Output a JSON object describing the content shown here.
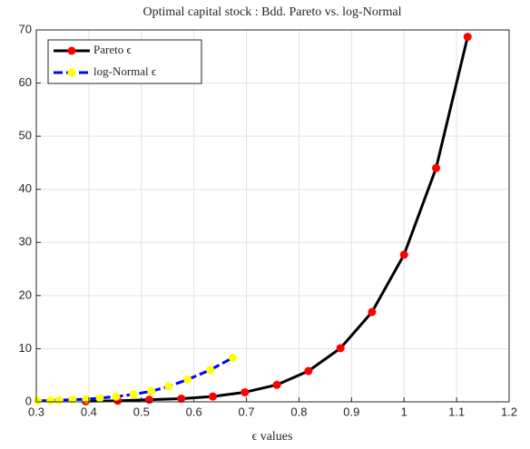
{
  "chart_data": {
    "type": "line",
    "title": "Optimal capital stock : Bdd. Pareto vs. log-Normal",
    "xlabel": "ϵ values",
    "xlim": [
      0.3,
      1.2
    ],
    "xticks": [
      0.3,
      0.4,
      0.5,
      0.6,
      0.7,
      0.8,
      0.9,
      1,
      1.1,
      1.2
    ],
    "ylim": [
      0,
      70
    ],
    "yticks": [
      0,
      10,
      20,
      30,
      40,
      50,
      60,
      70
    ],
    "grid": true,
    "legend": "upper left",
    "series": [
      {
        "name": "Pareto ϵ",
        "color": "#000000",
        "marker_color": "#ff0000",
        "dashed": false,
        "x": [
          0.394,
          0.455,
          0.515,
          0.576,
          0.636,
          0.697,
          0.758,
          0.818,
          0.879,
          0.939,
          1.0,
          1.061,
          1.121
        ],
        "values": [
          0.1,
          0.2,
          0.4,
          0.6,
          1.0,
          1.8,
          3.2,
          5.8,
          10.1,
          16.9,
          27.7,
          44.0,
          68.7
        ]
      },
      {
        "name": "log-Normal ϵ",
        "color": "#0000ff",
        "marker_color": "#ffff00",
        "dashed": true,
        "x": [
          0.303,
          0.327,
          0.343,
          0.369,
          0.395,
          0.421,
          0.452,
          0.485,
          0.519,
          0.552,
          0.588,
          0.631,
          0.674
        ],
        "values": [
          0.2,
          0.25,
          0.3,
          0.4,
          0.5,
          0.7,
          1.0,
          1.4,
          2.0,
          2.9,
          4.2,
          6.0,
          8.3
        ]
      }
    ]
  }
}
